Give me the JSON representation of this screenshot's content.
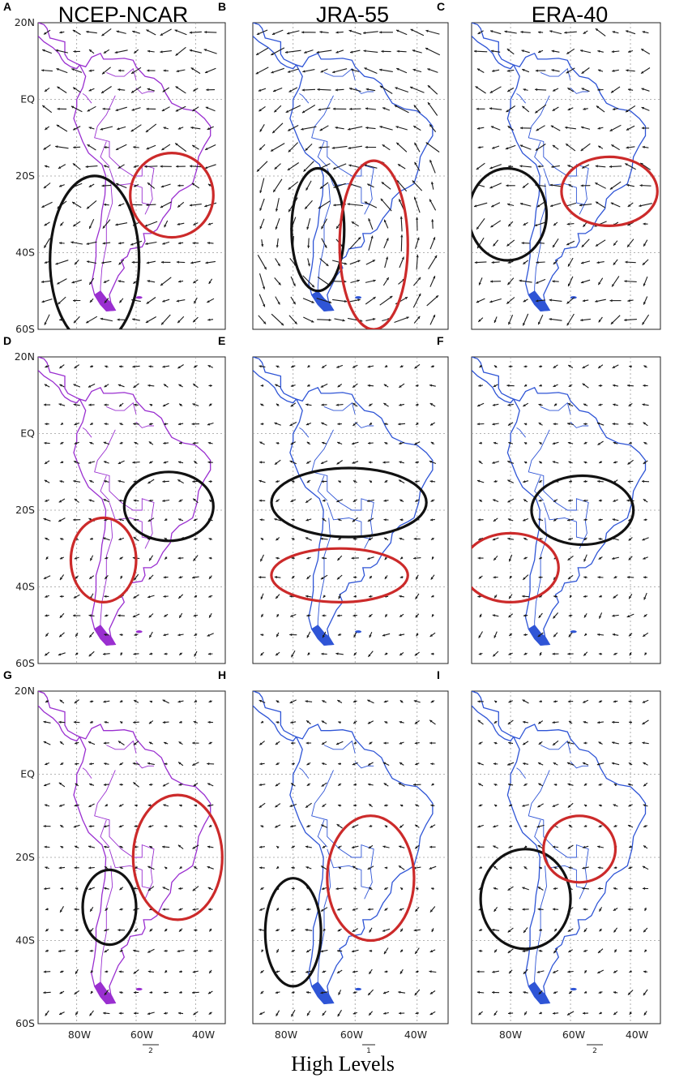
{
  "columns": [
    {
      "title": "NCEP-NCAR",
      "coast_color": "#9a2fd0",
      "scale_label": "2"
    },
    {
      "title": "JRA-55",
      "coast_color": "#2f55d6",
      "scale_label": "1"
    },
    {
      "title": "ERA-40",
      "coast_color": "#2f55d6",
      "scale_label": "2"
    }
  ],
  "panels": [
    {
      "label": "A",
      "ellipses": [
        {
          "color": "black",
          "cx": -74,
          "cy": -42,
          "rx": 15,
          "ry": 22
        },
        {
          "color": "red",
          "cx": -48,
          "cy": -25,
          "rx": 14,
          "ry": 11
        }
      ]
    },
    {
      "label": "B",
      "ellipses": [
        {
          "color": "black",
          "cx": -72,
          "cy": -34,
          "rx": 8.5,
          "ry": 16
        },
        {
          "color": "red",
          "cx": -54,
          "cy": -38,
          "rx": 11,
          "ry": 22
        }
      ]
    },
    {
      "label": "C",
      "ellipses": [
        {
          "color": "black",
          "cx": -81,
          "cy": -30,
          "rx": 13,
          "ry": 12
        },
        {
          "color": "red",
          "cx": -47,
          "cy": -24,
          "rx": 16,
          "ry": 9
        }
      ]
    },
    {
      "label": "D",
      "ellipses": [
        {
          "color": "black",
          "cx": -49,
          "cy": -19,
          "rx": 15,
          "ry": 9
        },
        {
          "color": "red",
          "cx": -71,
          "cy": -33,
          "rx": 11,
          "ry": 11
        }
      ]
    },
    {
      "label": "E",
      "ellipses": [
        {
          "color": "black",
          "cx": -62,
          "cy": -18,
          "rx": 25,
          "ry": 9
        },
        {
          "color": "red",
          "cx": -65,
          "cy": -37,
          "rx": 22,
          "ry": 7
        }
      ]
    },
    {
      "label": "F",
      "ellipses": [
        {
          "color": "black",
          "cx": -56,
          "cy": -20,
          "rx": 17,
          "ry": 9
        },
        {
          "color": "red",
          "cx": -80,
          "cy": -35,
          "rx": 16,
          "ry": 9
        }
      ]
    },
    {
      "label": "G",
      "ellipses": [
        {
          "color": "black",
          "cx": -69,
          "cy": -32,
          "rx": 9,
          "ry": 9
        },
        {
          "color": "red",
          "cx": -46,
          "cy": -20,
          "rx": 15,
          "ry": 15
        }
      ]
    },
    {
      "label": "H",
      "ellipses": [
        {
          "color": "black",
          "cx": -80,
          "cy": -38,
          "rx": 9,
          "ry": 13
        },
        {
          "color": "red",
          "cx": -55,
          "cy": -25,
          "rx": 14,
          "ry": 15
        }
      ]
    },
    {
      "label": "I",
      "ellipses": [
        {
          "color": "black",
          "cx": -75,
          "cy": -30,
          "rx": 15,
          "ry": 12
        },
        {
          "color": "red",
          "cx": -57,
          "cy": -18,
          "rx": 12,
          "ry": 8
        }
      ]
    }
  ],
  "lat_labels": [
    "20N",
    "EQ",
    "20S",
    "40S",
    "60S"
  ],
  "lon_labels": [
    "80W",
    "60W",
    "40W"
  ],
  "bottom_title": "High Levels"
}
